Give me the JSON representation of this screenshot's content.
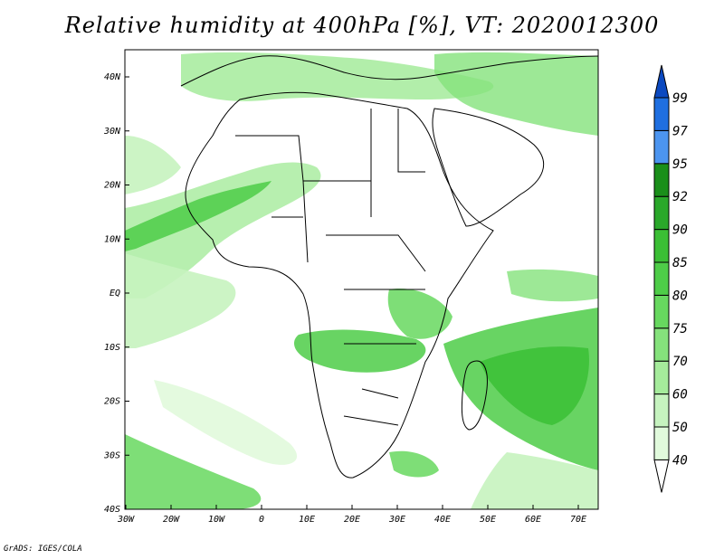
{
  "title": "Relative humidity at 400hPa [%], VT: 2020012300",
  "credit": "GrADS: IGES/COLA",
  "lon_labels": [
    "30W",
    "20W",
    "10W",
    "0",
    "10E",
    "20E",
    "30E",
    "40E",
    "50E",
    "60E",
    "70E"
  ],
  "lat_labels": [
    "40N",
    "30N",
    "20N",
    "10N",
    "EQ",
    "10S",
    "20S",
    "30S",
    "40S"
  ],
  "colorbar": {
    "labels": [
      "40",
      "50",
      "60",
      "70",
      "75",
      "80",
      "85",
      "90",
      "92",
      "95",
      "97",
      "99"
    ],
    "colors": [
      "#ffffff",
      "#e1fadc",
      "#c6f3bf",
      "#a5eb9b",
      "#85e27c",
      "#67d85f",
      "#4ecd48",
      "#3bbf35",
      "#2aa82a",
      "#1a8f1a",
      "#4c95f0",
      "#1f6fe0",
      "#0b49c0"
    ]
  },
  "map_colors": {
    "coast": "#000000",
    "low": "#e1fadc",
    "mid": "#a5eb9b",
    "high": "#4ecd48",
    "very_high": "#2aa82a"
  }
}
